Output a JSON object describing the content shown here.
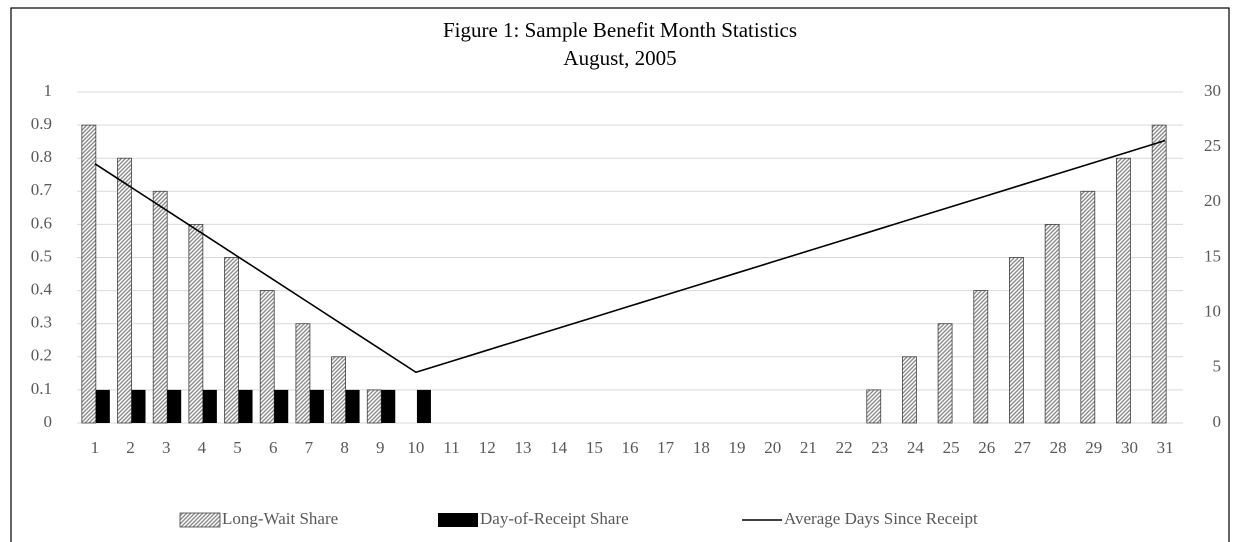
{
  "chart_data": {
    "type": "bar",
    "title": "Figure 1: Sample Benefit Month Statistics",
    "subtitle": "August, 2005",
    "categories": [
      "1",
      "2",
      "3",
      "4",
      "5",
      "6",
      "7",
      "8",
      "9",
      "10",
      "11",
      "12",
      "13",
      "14",
      "15",
      "16",
      "17",
      "18",
      "19",
      "20",
      "21",
      "22",
      "23",
      "24",
      "25",
      "26",
      "27",
      "28",
      "29",
      "30",
      "31"
    ],
    "series": [
      {
        "name": "Long-Wait Share",
        "color": "#8c8c8c",
        "type": "bar",
        "values": [
          0.9,
          0.8,
          0.7,
          0.6,
          0.5,
          0.4,
          0.3,
          0.2,
          0.1,
          0,
          0,
          0,
          0,
          0,
          0,
          0,
          0,
          0,
          0,
          0,
          0,
          0,
          0.1,
          0.2,
          0.3,
          0.4,
          0.5,
          0.6,
          0.7,
          0.8,
          0.9
        ]
      },
      {
        "name": "Day-of-Receipt Share",
        "color": "#000000",
        "type": "bar",
        "values": [
          0.1,
          0.1,
          0.1,
          0.1,
          0.1,
          0.1,
          0.1,
          0.1,
          0.1,
          0.1,
          0,
          0,
          0,
          0,
          0,
          0,
          0,
          0,
          0,
          0,
          0,
          0,
          0,
          0,
          0,
          0,
          0,
          0,
          0,
          0,
          0
        ]
      },
      {
        "name": "Average Days Since Receipt",
        "color": "#000000",
        "type": "line",
        "axis": "y2",
        "values": [
          23.5,
          21.4,
          19.3,
          17.2,
          15.1,
          13.0,
          10.9,
          8.8,
          6.7,
          4.6,
          5.6,
          6.6,
          7.6,
          8.6,
          9.6,
          10.6,
          11.6,
          12.6,
          13.6,
          14.6,
          15.6,
          16.6,
          17.6,
          18.6,
          19.6,
          20.6,
          21.6,
          22.6,
          23.6,
          24.6,
          25.6
        ]
      }
    ],
    "ylim": [
      0,
      1
    ],
    "yticks": [
      0,
      0.1,
      0.2,
      0.3,
      0.4,
      0.5,
      0.6,
      0.7,
      0.8,
      0.9,
      1
    ],
    "y2lim": [
      0,
      30
    ],
    "y2ticks": [
      0,
      5,
      10,
      15,
      20,
      25,
      30
    ],
    "grid": true,
    "legend": "bottom"
  }
}
